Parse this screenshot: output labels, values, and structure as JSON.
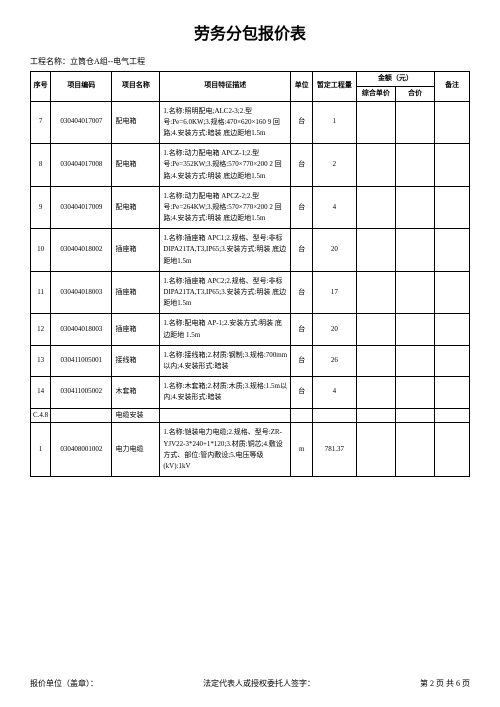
{
  "title": "劳务分包报价表",
  "project_label": "工程名称：",
  "project_name": "立筒仓A组--电气工程",
  "header": {
    "seq": "序号",
    "code": "项目编码",
    "name": "项目名称",
    "desc": "项目特征描述",
    "unit": "单位",
    "qty": "暂定工程量",
    "amount_group": "金额（元）",
    "unit_price": "综合单价",
    "total_price": "合价",
    "note": "备注"
  },
  "rows": [
    {
      "seq": "7",
      "code": "030404017007",
      "name": "配电箱",
      "desc": "1.名称:照明配电;ALC2-3;2.型号:Pe=6.0KW;3.规格:470×620×160 9 回路;4.安装方式:暗装 底边距地1.5m",
      "unit": "台",
      "qty": "1"
    },
    {
      "seq": "8",
      "code": "030404017008",
      "name": "配电箱",
      "desc": "1.名称:动力配电箱 APCZ-1;2.型号:Pe=352KW;3.规格:570×770×200 2 回路;4.安装方式:明装 底边距地1.5m",
      "unit": "台",
      "qty": "2"
    },
    {
      "seq": "9",
      "code": "030404017009",
      "name": "配电箱",
      "desc": "1.名称:动力配电箱 APCZ-2;2.型号:Pe=264KW;3.规格:570×770×200 2 回路;4.安装方式:明装 底边距地1.5m",
      "unit": "台",
      "qty": "4"
    },
    {
      "seq": "10",
      "code": "030404018002",
      "name": "插座箱",
      "desc": "1.名称:插座箱 APC1;2.规格、型号:非标 DIPA21TA,T3,IP65;3.安装方式:明装 底边距地1.5m",
      "unit": "台",
      "qty": "20"
    },
    {
      "seq": "11",
      "code": "030404018003",
      "name": "插座箱",
      "desc": "1.名称:插座箱 APC2;2.规格、型号:非标 DIPA21TA,T3,IP65;3.安装方式:明装 底边距地1.5m",
      "unit": "台",
      "qty": "17"
    },
    {
      "seq": "12",
      "code": "030404018003",
      "name": "插座箱",
      "desc": "1.名称:配电箱 AP-1;2.安装方式:明装 底边距地 1.5m",
      "unit": "台",
      "qty": "20"
    },
    {
      "seq": "13",
      "code": "030411005001",
      "name": "接线箱",
      "desc": "1.名称:接线箱;2.材质:钢制;3.规格:700mm以内;4.安装形式:暗装",
      "unit": "台",
      "qty": "26"
    },
    {
      "seq": "14",
      "code": "030411005002",
      "name": "木套箱",
      "desc": "1.名称:木套箱;2.材质:木质;3.规格:1.5m以内;4.安装形式:暗装",
      "unit": "台",
      "qty": "4"
    },
    {
      "seq": "C.4.8",
      "code": "",
      "name": "电缆安装",
      "desc": "",
      "unit": "",
      "qty": ""
    },
    {
      "seq": "1",
      "code": "030408001002",
      "name": "电力电缆",
      "desc": "1.名称:铠装电力电缆;2.规格、型号:ZR-YJV22-3*240+1*120;3.材质:铜芯;4.敷设方式、部位:管内敷设;5.电压等级(kV):1kV",
      "unit": "m",
      "qty": "781.37"
    }
  ],
  "footer": {
    "left": "报价单位（盖章）：",
    "center": "法定代表人或授权委托人签字：",
    "right": "第 2 页 共 6 页"
  }
}
